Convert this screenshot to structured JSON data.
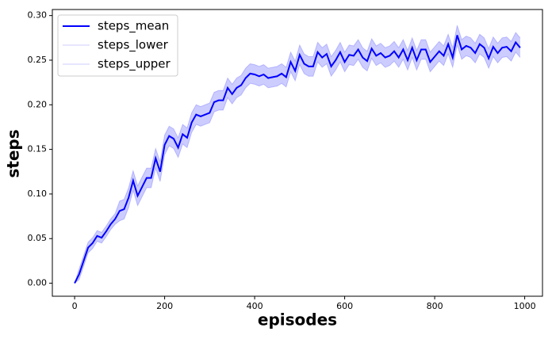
{
  "chart_data": {
    "type": "line",
    "xlabel": "episodes",
    "ylabel": "steps",
    "x": [
      0,
      10,
      20,
      30,
      40,
      50,
      60,
      70,
      80,
      90,
      100,
      110,
      120,
      130,
      140,
      150,
      160,
      170,
      180,
      190,
      200,
      210,
      220,
      230,
      240,
      250,
      260,
      270,
      280,
      290,
      300,
      310,
      320,
      330,
      340,
      350,
      360,
      370,
      380,
      390,
      400,
      410,
      420,
      430,
      440,
      450,
      460,
      470,
      480,
      490,
      500,
      510,
      520,
      530,
      540,
      550,
      560,
      570,
      580,
      590,
      600,
      610,
      620,
      630,
      640,
      650,
      660,
      670,
      680,
      690,
      700,
      710,
      720,
      730,
      740,
      750,
      760,
      770,
      780,
      790,
      800,
      810,
      820,
      830,
      840,
      850,
      860,
      870,
      880,
      890,
      900,
      910,
      920,
      930,
      940,
      950,
      960,
      970,
      980,
      990
    ],
    "series": [
      {
        "name": "steps_mean",
        "color": "#0000ff",
        "alpha": 1,
        "width": 2,
        "values": [
          0,
          0.01,
          0.025,
          0.04,
          0.045,
          0.053,
          0.051,
          0.058,
          0.066,
          0.072,
          0.081,
          0.083,
          0.096,
          0.115,
          0.098,
          0.108,
          0.118,
          0.118,
          0.14,
          0.125,
          0.155,
          0.165,
          0.162,
          0.152,
          0.167,
          0.163,
          0.18,
          0.189,
          0.187,
          0.189,
          0.191,
          0.203,
          0.205,
          0.205,
          0.219,
          0.212,
          0.219,
          0.222,
          0.23,
          0.235,
          0.234,
          0.232,
          0.234,
          0.23,
          0.231,
          0.232,
          0.235,
          0.231,
          0.248,
          0.238,
          0.256,
          0.246,
          0.243,
          0.243,
          0.259,
          0.253,
          0.257,
          0.243,
          0.25,
          0.259,
          0.248,
          0.256,
          0.255,
          0.262,
          0.253,
          0.249,
          0.263,
          0.255,
          0.258,
          0.253,
          0.255,
          0.26,
          0.253,
          0.262,
          0.25,
          0.264,
          0.25,
          0.262,
          0.262,
          0.248,
          0.254,
          0.26,
          0.255,
          0.268,
          0.253,
          0.278,
          0.262,
          0.266,
          0.264,
          0.258,
          0.268,
          0.264,
          0.252,
          0.265,
          0.258,
          0.264,
          0.265,
          0.26,
          0.27,
          0.264
        ]
      },
      {
        "name": "steps_lower",
        "color": "#0000ff",
        "alpha": 0.2,
        "width": 1,
        "values": [
          0,
          0.004,
          0.019,
          0.034,
          0.039,
          0.047,
          0.045,
          0.052,
          0.06,
          0.066,
          0.07,
          0.072,
          0.085,
          0.104,
          0.087,
          0.097,
          0.107,
          0.107,
          0.129,
          0.114,
          0.144,
          0.154,
          0.151,
          0.141,
          0.156,
          0.152,
          0.169,
          0.178,
          0.176,
          0.178,
          0.18,
          0.192,
          0.194,
          0.194,
          0.208,
          0.201,
          0.208,
          0.211,
          0.219,
          0.224,
          0.223,
          0.221,
          0.223,
          0.219,
          0.22,
          0.221,
          0.224,
          0.22,
          0.237,
          0.227,
          0.245,
          0.235,
          0.232,
          0.232,
          0.248,
          0.242,
          0.246,
          0.232,
          0.239,
          0.248,
          0.237,
          0.245,
          0.244,
          0.251,
          0.242,
          0.238,
          0.252,
          0.244,
          0.247,
          0.242,
          0.244,
          0.249,
          0.242,
          0.251,
          0.239,
          0.253,
          0.239,
          0.251,
          0.251,
          0.237,
          0.243,
          0.249,
          0.244,
          0.257,
          0.242,
          0.267,
          0.251,
          0.255,
          0.253,
          0.247,
          0.257,
          0.253,
          0.241,
          0.254,
          0.247,
          0.253,
          0.254,
          0.249,
          0.259,
          0.253
        ]
      },
      {
        "name": "steps_upper",
        "color": "#0000ff",
        "alpha": 0.2,
        "width": 1,
        "values": [
          0,
          0.016,
          0.031,
          0.046,
          0.051,
          0.059,
          0.057,
          0.064,
          0.072,
          0.078,
          0.092,
          0.094,
          0.107,
          0.126,
          0.109,
          0.119,
          0.129,
          0.129,
          0.151,
          0.136,
          0.166,
          0.176,
          0.173,
          0.163,
          0.178,
          0.174,
          0.191,
          0.2,
          0.198,
          0.2,
          0.202,
          0.214,
          0.216,
          0.216,
          0.23,
          0.223,
          0.23,
          0.233,
          0.241,
          0.246,
          0.245,
          0.243,
          0.245,
          0.241,
          0.242,
          0.243,
          0.246,
          0.242,
          0.259,
          0.249,
          0.267,
          0.257,
          0.254,
          0.254,
          0.27,
          0.264,
          0.268,
          0.254,
          0.261,
          0.27,
          0.259,
          0.267,
          0.266,
          0.273,
          0.264,
          0.26,
          0.274,
          0.266,
          0.269,
          0.264,
          0.266,
          0.271,
          0.264,
          0.273,
          0.261,
          0.275,
          0.261,
          0.273,
          0.273,
          0.259,
          0.265,
          0.271,
          0.266,
          0.279,
          0.264,
          0.289,
          0.273,
          0.277,
          0.275,
          0.269,
          0.279,
          0.275,
          0.263,
          0.276,
          0.269,
          0.275,
          0.276,
          0.271,
          0.281,
          0.275
        ]
      }
    ],
    "band_color": "#0000ff",
    "band_alpha": 0.2,
    "xlim": [
      -49.5,
      1039.5
    ],
    "ylim": [
      -0.0146,
      0.3068
    ],
    "xticks": [
      0,
      200,
      400,
      600,
      800,
      1000
    ],
    "yticks": [
      {
        "value": 0,
        "label": "0.00"
      },
      {
        "value": 0.05,
        "label": "0.05"
      },
      {
        "value": 0.1,
        "label": "0.10"
      },
      {
        "value": 0.15,
        "label": "0.15"
      },
      {
        "value": 0.2,
        "label": "0.20"
      },
      {
        "value": 0.25,
        "label": "0.25"
      },
      {
        "value": 0.3,
        "label": "0.30"
      }
    ],
    "legend": "upper left",
    "grid": false
  }
}
